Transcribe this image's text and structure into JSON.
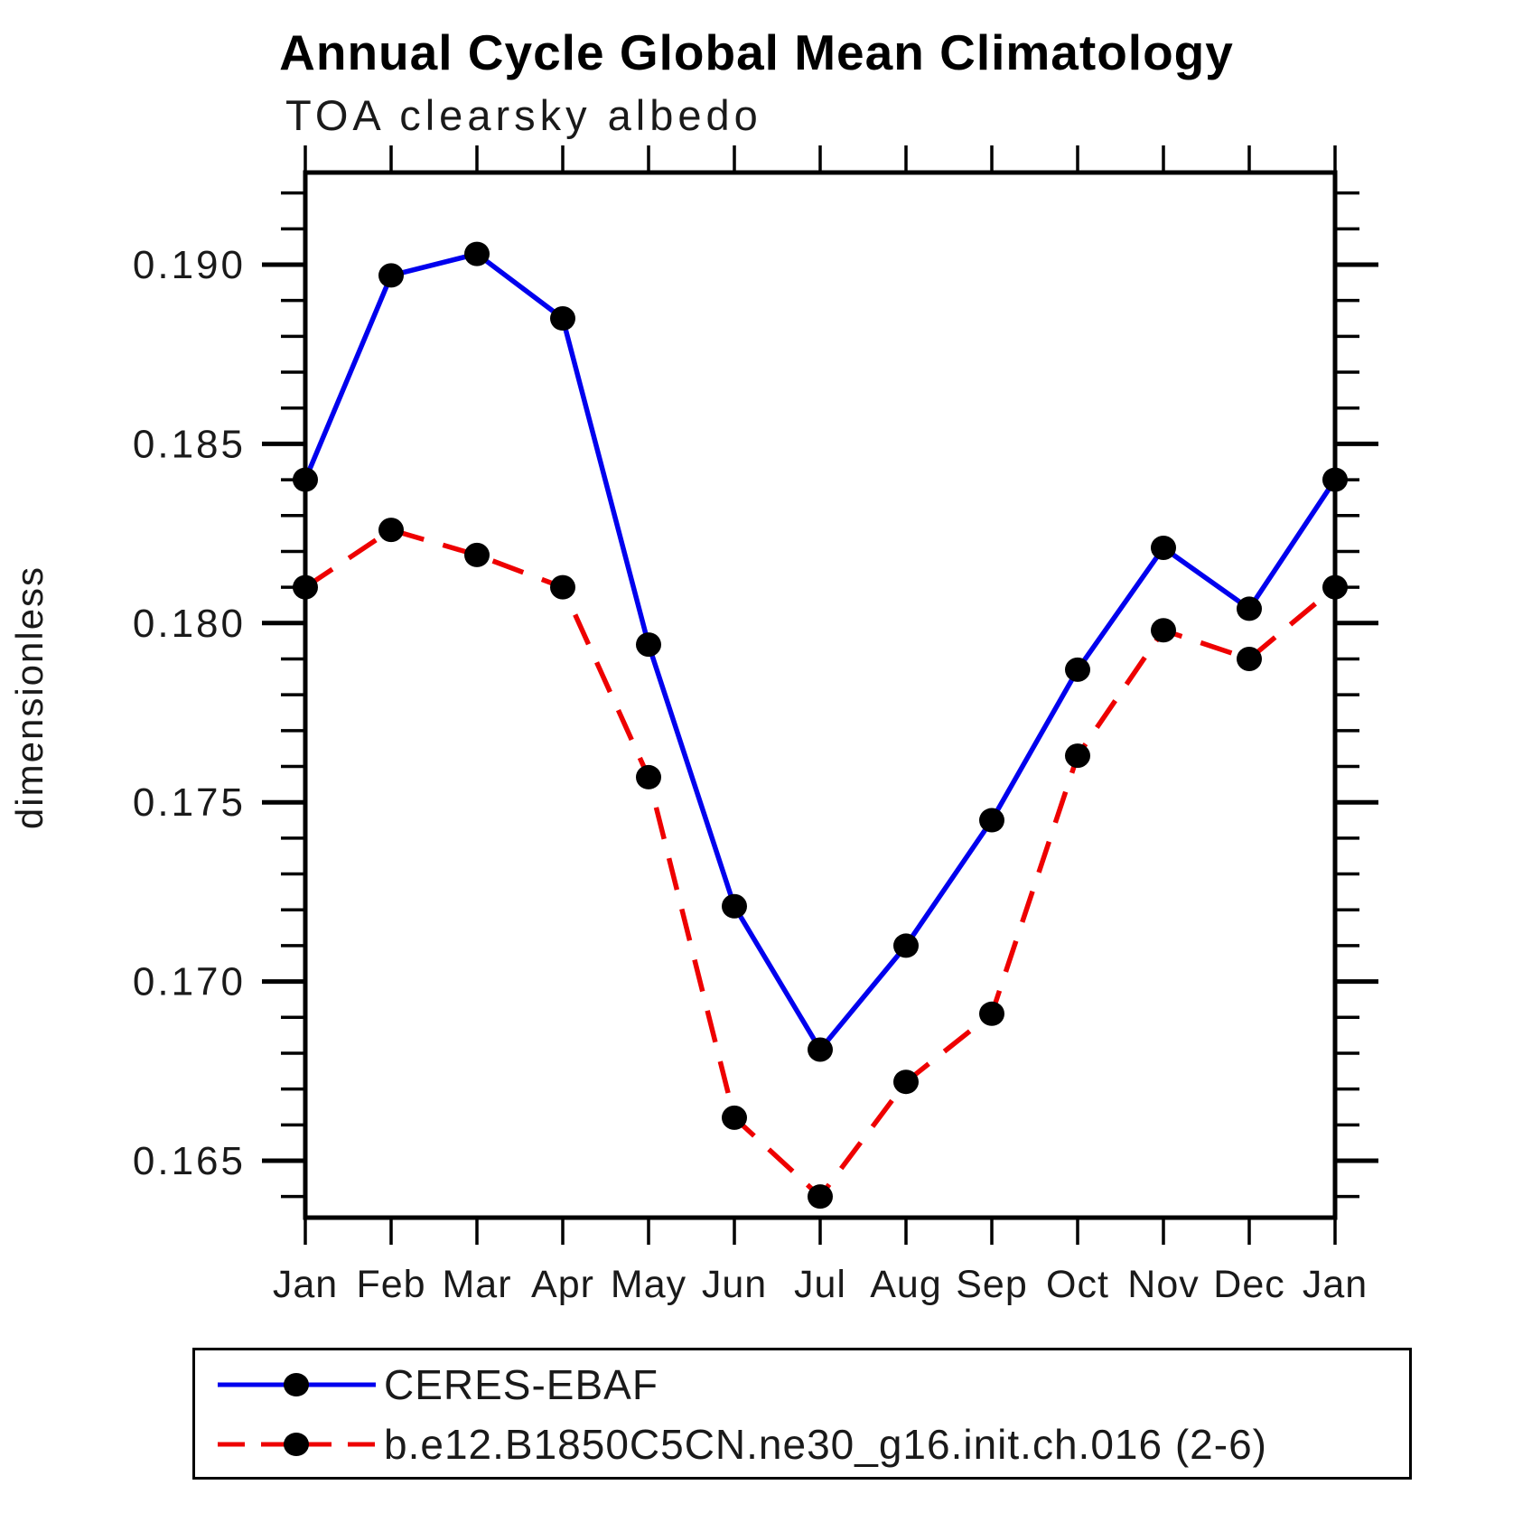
{
  "chart_data": {
    "type": "line",
    "title": "Annual Cycle Global Mean Climatology",
    "subtitle": "TOA clearsky albedo",
    "ylabel": "dimensionless",
    "categories": [
      "Jan",
      "Feb",
      "Mar",
      "Apr",
      "May",
      "Jun",
      "Jul",
      "Aug",
      "Sep",
      "Oct",
      "Nov",
      "Dec",
      "Jan"
    ],
    "ylim": [
      0.1634,
      0.1926
    ],
    "yticks_major": [
      0.19,
      0.185,
      0.18,
      0.175,
      0.17,
      0.165
    ],
    "ytick_minor_step": 0.001,
    "grid": "off",
    "legend_position": "bottom",
    "marker_color": "#000000",
    "axis_color": "#000000",
    "series": [
      {
        "name": "CERES-EBAF",
        "color": "#0000ee",
        "style": "solid",
        "values": [
          0.184,
          0.1897,
          0.1903,
          0.1885,
          0.1794,
          0.1721,
          0.1681,
          0.171,
          0.1745,
          0.1787,
          0.1821,
          0.1804,
          0.184
        ]
      },
      {
        "name": "b.e12.B1850C5CN.ne30_g16.init.ch.016 (2-6)",
        "color": "#ee0000",
        "style": "dashed",
        "values": [
          0.181,
          0.1826,
          0.1819,
          0.181,
          0.1757,
          0.1662,
          0.164,
          0.1672,
          0.1691,
          0.1763,
          0.1798,
          0.179,
          0.181
        ]
      }
    ]
  }
}
